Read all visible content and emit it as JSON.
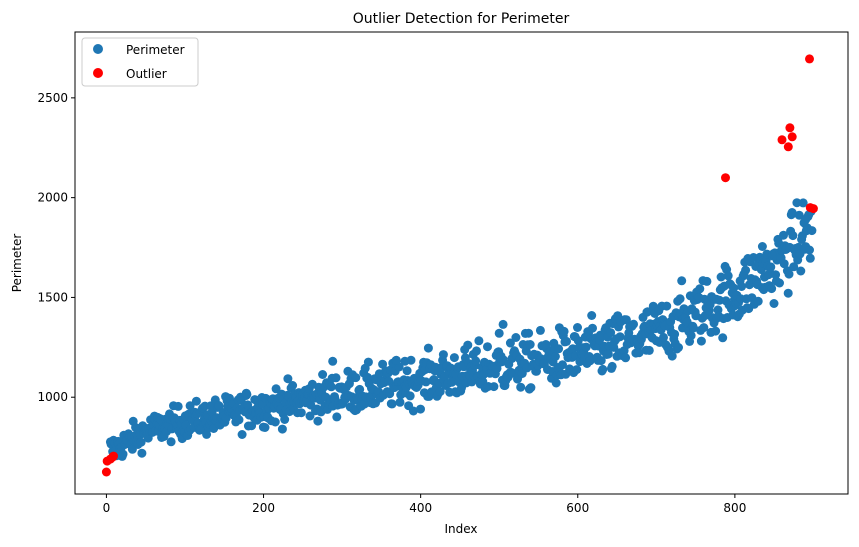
{
  "chart_data": {
    "type": "scatter",
    "title": "Outlier Detection for Perimeter",
    "xlabel": "Index",
    "ylabel": "Perimeter",
    "xlim": [
      -40,
      944
    ],
    "ylim": [
      515,
      2830
    ],
    "xticks": [
      0,
      200,
      400,
      600,
      800
    ],
    "yticks": [
      1000,
      1500,
      2000,
      2500
    ],
    "grid": false,
    "legend": {
      "position": "top-left",
      "entries": [
        "Perimeter",
        "Outlier"
      ]
    },
    "colors": {
      "normal": "#1f77b4",
      "outlier": "#ff0000"
    },
    "series": [
      {
        "name": "Perimeter",
        "color": "#1f77b4",
        "trend_points": [
          [
            10,
            740
          ],
          [
            50,
            830
          ],
          [
            100,
            880
          ],
          [
            150,
            910
          ],
          [
            200,
            950
          ],
          [
            250,
            985
          ],
          [
            300,
            1020
          ],
          [
            350,
            1050
          ],
          [
            400,
            1085
          ],
          [
            450,
            1120
          ],
          [
            500,
            1155
          ],
          [
            550,
            1185
          ],
          [
            600,
            1215
          ],
          [
            650,
            1260
          ],
          [
            700,
            1320
          ],
          [
            750,
            1420
          ],
          [
            800,
            1520
          ],
          [
            850,
            1650
          ],
          [
            895,
            1840
          ]
        ],
        "index_range": [
          5,
          898
        ],
        "count": 890,
        "notable": [
          [
            178,
            1020
          ],
          [
            288,
            1180
          ],
          [
            369,
            1185
          ],
          [
            380,
            1180
          ],
          [
            500,
            1320
          ],
          [
            505,
            1365
          ],
          [
            835,
            1755
          ],
          [
            890,
            1890
          ]
        ]
      },
      {
        "name": "Outlier",
        "color": "#ff0000",
        "points": [
          [
            0,
            625
          ],
          [
            1,
            680
          ],
          [
            5,
            690
          ],
          [
            8,
            700
          ],
          [
            9,
            705
          ],
          [
            788,
            2100
          ],
          [
            860,
            2290
          ],
          [
            868,
            2255
          ],
          [
            870,
            2350
          ],
          [
            873,
            2305
          ],
          [
            895,
            2695
          ],
          [
            896,
            1950
          ],
          [
            900,
            1945
          ]
        ]
      }
    ]
  }
}
